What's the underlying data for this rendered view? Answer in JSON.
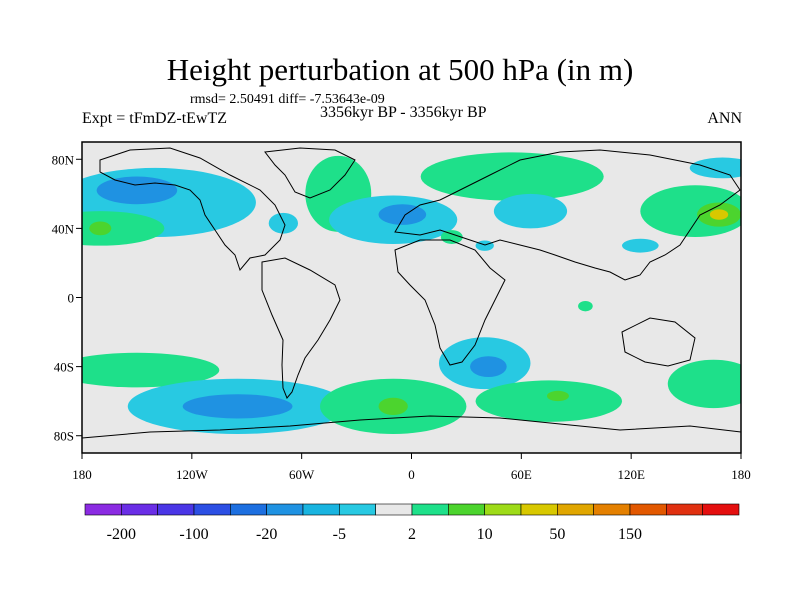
{
  "title": "Height perturbation at 500 hPa (in m)",
  "stats": "rmsd= 2.50491 diff= -7.53643e-09",
  "experiment": "Expt = tFmDZ-tEwTZ",
  "period": "3356kyr BP - 3356kyr BP",
  "season": "ANN",
  "chart_data": {
    "type": "heatmap",
    "title": "Height perturbation at 500 hPa (in m)",
    "variable": "500 hPa geopotential height perturbation",
    "units": "m",
    "x_ticks": [
      "180",
      "120W",
      "60W",
      "0",
      "60E",
      "120E",
      "180"
    ],
    "x_tick_values": [
      -180,
      -120,
      -60,
      0,
      60,
      120,
      180
    ],
    "y_ticks": [
      "80N",
      "40N",
      "0",
      "40S",
      "80S"
    ],
    "y_tick_values": [
      80,
      40,
      0,
      -40,
      -80
    ],
    "xlim": [
      -180,
      180
    ],
    "ylim": [
      -90,
      90
    ],
    "colorbar_labels": [
      "-200",
      "-100",
      "-20",
      "-5",
      "2",
      "10",
      "50",
      "150"
    ],
    "colorbar_colors": [
      "#8b2be2",
      "#6a2ee6",
      "#4a36e6",
      "#2c4fe4",
      "#1d6fe0",
      "#1f92e2",
      "#19b4e0",
      "#28c9e2",
      "#e8e8e8",
      "#1ee08a",
      "#4cd42e",
      "#9edb18",
      "#d8c800",
      "#e0a600",
      "#e48000",
      "#e25800",
      "#e03010",
      "#e40f0f"
    ],
    "regions": [
      {
        "lon": -140,
        "lat": 55,
        "rx": 55,
        "ry": 20,
        "level": "-5"
      },
      {
        "lon": -150,
        "lat": 62,
        "rx": 22,
        "ry": 8,
        "level": "-20"
      },
      {
        "lon": -170,
        "lat": 40,
        "rx": 35,
        "ry": 10,
        "level": "2"
      },
      {
        "lon": -170,
        "lat": 40,
        "rx": 6,
        "ry": 4,
        "level": "10"
      },
      {
        "lon": -40,
        "lat": 60,
        "rx": 18,
        "ry": 22,
        "level": "2"
      },
      {
        "lon": -70,
        "lat": 43,
        "rx": 8,
        "ry": 6,
        "level": "-5"
      },
      {
        "lon": -10,
        "lat": 45,
        "rx": 35,
        "ry": 14,
        "level": "-5"
      },
      {
        "lon": -5,
        "lat": 48,
        "rx": 13,
        "ry": 6,
        "level": "-20"
      },
      {
        "lon": 55,
        "lat": 70,
        "rx": 50,
        "ry": 14,
        "level": "2"
      },
      {
        "lon": 65,
        "lat": 50,
        "rx": 20,
        "ry": 10,
        "level": "-5"
      },
      {
        "lon": 155,
        "lat": 50,
        "rx": 30,
        "ry": 15,
        "level": "2"
      },
      {
        "lon": 168,
        "lat": 48,
        "rx": 12,
        "ry": 7,
        "level": "10"
      },
      {
        "lon": 168,
        "lat": 48,
        "rx": 5,
        "ry": 3,
        "level": "50"
      },
      {
        "lon": 170,
        "lat": 75,
        "rx": 18,
        "ry": 6,
        "level": "-5"
      },
      {
        "lon": 125,
        "lat": 30,
        "rx": 10,
        "ry": 4,
        "level": "-5"
      },
      {
        "lon": 22,
        "lat": 35,
        "rx": 6,
        "ry": 4,
        "level": "2"
      },
      {
        "lon": 40,
        "lat": 30,
        "rx": 5,
        "ry": 3,
        "level": "-5"
      },
      {
        "lon": -150,
        "lat": -42,
        "rx": 45,
        "ry": 10,
        "level": "2"
      },
      {
        "lon": -95,
        "lat": -63,
        "rx": 60,
        "ry": 16,
        "level": "-5"
      },
      {
        "lon": -95,
        "lat": -63,
        "rx": 30,
        "ry": 7,
        "level": "-20"
      },
      {
        "lon": -10,
        "lat": -63,
        "rx": 40,
        "ry": 16,
        "level": "2"
      },
      {
        "lon": -10,
        "lat": -63,
        "rx": 8,
        "ry": 5,
        "level": "10"
      },
      {
        "lon": 40,
        "lat": -38,
        "rx": 25,
        "ry": 15,
        "level": "-5"
      },
      {
        "lon": 42,
        "lat": -40,
        "rx": 10,
        "ry": 6,
        "level": "-20"
      },
      {
        "lon": 75,
        "lat": -60,
        "rx": 40,
        "ry": 12,
        "level": "2"
      },
      {
        "lon": 80,
        "lat": -57,
        "rx": 6,
        "ry": 3,
        "level": "10"
      },
      {
        "lon": 165,
        "lat": -50,
        "rx": 25,
        "ry": 14,
        "level": "2"
      },
      {
        "lon": 95,
        "lat": -5,
        "rx": 4,
        "ry": 3,
        "level": "2"
      }
    ]
  }
}
